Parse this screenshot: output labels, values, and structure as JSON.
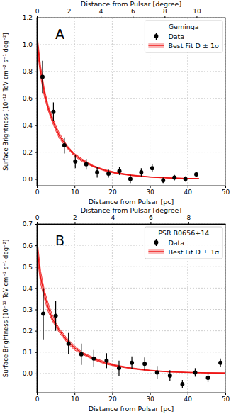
{
  "chart_data": [
    {
      "type": "scatter",
      "annotation": "A",
      "x_label": "Distance from Pulsar [pc]",
      "x2_label": "Distance from Pulsar [degree]",
      "y_label": "Surface Brightness [10⁻¹² TeV cm⁻² s⁻¹ deg⁻²]",
      "xlim": [
        0,
        50
      ],
      "xticks": [
        0,
        10,
        20,
        30,
        40,
        50
      ],
      "x2lim": [
        0,
        11.8
      ],
      "x2ticks": [
        0,
        2,
        4,
        6,
        8,
        10
      ],
      "ylim": [
        -0.05,
        1.2
      ],
      "yticks": [
        {
          "value": 0,
          "label": "0.0"
        },
        0.2,
        0.4,
        0.6,
        0.8,
        {
          "value": 1,
          "label": "1.0"
        },
        1.2
      ],
      "grid": true,
      "legend": "upper right",
      "legend_title": "Geminga",
      "series": [
        {
          "name": "Data",
          "type": "scatter",
          "color": "#000000",
          "marker": "circle",
          "x": [
            1.5,
            4.4,
            7.3,
            10.2,
            13.1,
            16.0,
            19.0,
            21.9,
            24.8,
            27.7,
            30.6,
            33.5,
            36.5,
            39.4,
            42.3
          ],
          "values": [
            0.76,
            0.5,
            0.25,
            0.13,
            0.11,
            0.05,
            0.04,
            0.06,
            0.0,
            0.05,
            0.08,
            -0.01,
            0.01,
            0.0,
            0.035
          ],
          "errors": [
            0.12,
            0.07,
            0.06,
            0.05,
            0.04,
            0.04,
            0.03,
            0.03,
            0.03,
            0.03,
            0.03,
            0.02,
            0.02,
            0.02,
            0.02
          ]
        },
        {
          "name": "Best Fit D ± 1σ",
          "type": "line",
          "color": "#ee1111",
          "line_style": "solid",
          "x": [
            0,
            1,
            2,
            3,
            4,
            5,
            6,
            8,
            10,
            12,
            15,
            18,
            21,
            25,
            30,
            35,
            40,
            43
          ],
          "values": [
            1.05,
            0.8,
            0.64,
            0.53,
            0.45,
            0.38,
            0.32,
            0.24,
            0.18,
            0.14,
            0.095,
            0.065,
            0.045,
            0.028,
            0.015,
            0.008,
            0.004,
            0.003
          ],
          "lower": [
            0.99,
            0.76,
            0.61,
            0.51,
            0.43,
            0.36,
            0.3,
            0.23,
            0.17,
            0.13,
            0.09,
            0.06,
            0.04,
            0.025,
            0.013,
            0.007,
            0.003,
            0.002
          ],
          "upper": [
            1.1,
            0.84,
            0.67,
            0.55,
            0.47,
            0.4,
            0.34,
            0.25,
            0.19,
            0.15,
            0.1,
            0.07,
            0.05,
            0.031,
            0.017,
            0.009,
            0.005,
            0.004
          ]
        }
      ]
    },
    {
      "type": "scatter",
      "annotation": "B",
      "x_label": "Distance from Pulsar [pc]",
      "x2_label": "Distance from Pulsar [degree]",
      "y_label": "Surface Brightness [10⁻¹² TeV cm⁻² s⁻¹ deg⁻²]",
      "xlim": [
        0,
        50
      ],
      "xticks": [
        0,
        10,
        20,
        30,
        40,
        50
      ],
      "x2lim": [
        0,
        9.95
      ],
      "x2ticks": [
        0,
        2,
        4,
        6,
        8
      ],
      "ylim": [
        -0.09,
        0.7
      ],
      "yticks": [
        {
          "value": 0,
          "label": "0.0"
        },
        0.1,
        0.2,
        0.3,
        0.4,
        0.5,
        0.6,
        0.7
      ],
      "grid": true,
      "legend": "upper right",
      "legend_title": "PSR B0656+14",
      "series": [
        {
          "name": "Data",
          "type": "scatter",
          "color": "#000000",
          "marker": "circle",
          "x": [
            1.7,
            5.0,
            8.4,
            11.8,
            15.1,
            18.5,
            21.8,
            25.2,
            28.6,
            31.9,
            35.3,
            38.6,
            42.0,
            45.4,
            48.7
          ],
          "values": [
            0.28,
            0.27,
            0.14,
            0.09,
            0.07,
            0.06,
            0.025,
            0.05,
            0.045,
            0.005,
            -0.01,
            -0.05,
            0.005,
            -0.02,
            0.05
          ],
          "errors": [
            0.12,
            0.07,
            0.05,
            0.05,
            0.04,
            0.035,
            0.035,
            0.03,
            0.03,
            0.03,
            0.025,
            0.02,
            0.02,
            0.02,
            0.02
          ]
        },
        {
          "name": "Best Fit D ± 1σ",
          "type": "line",
          "color": "#ee1111",
          "line_style": "solid",
          "x": [
            0,
            1,
            2,
            3,
            4,
            5,
            6,
            8,
            10,
            12,
            15,
            18,
            21,
            25,
            30,
            35,
            40,
            45,
            50
          ],
          "values": [
            0.6,
            0.45,
            0.37,
            0.31,
            0.26,
            0.23,
            0.2,
            0.155,
            0.12,
            0.095,
            0.07,
            0.05,
            0.037,
            0.025,
            0.014,
            0.008,
            0.005,
            0.003,
            0.002
          ],
          "lower": [
            0.56,
            0.42,
            0.35,
            0.29,
            0.25,
            0.22,
            0.19,
            0.145,
            0.11,
            0.09,
            0.065,
            0.045,
            0.034,
            0.022,
            0.012,
            0.007,
            0.004,
            0.002,
            0.001
          ],
          "upper": [
            0.64,
            0.48,
            0.39,
            0.33,
            0.28,
            0.24,
            0.21,
            0.165,
            0.13,
            0.1,
            0.075,
            0.055,
            0.04,
            0.027,
            0.016,
            0.009,
            0.006,
            0.004,
            0.003
          ]
        }
      ]
    }
  ]
}
